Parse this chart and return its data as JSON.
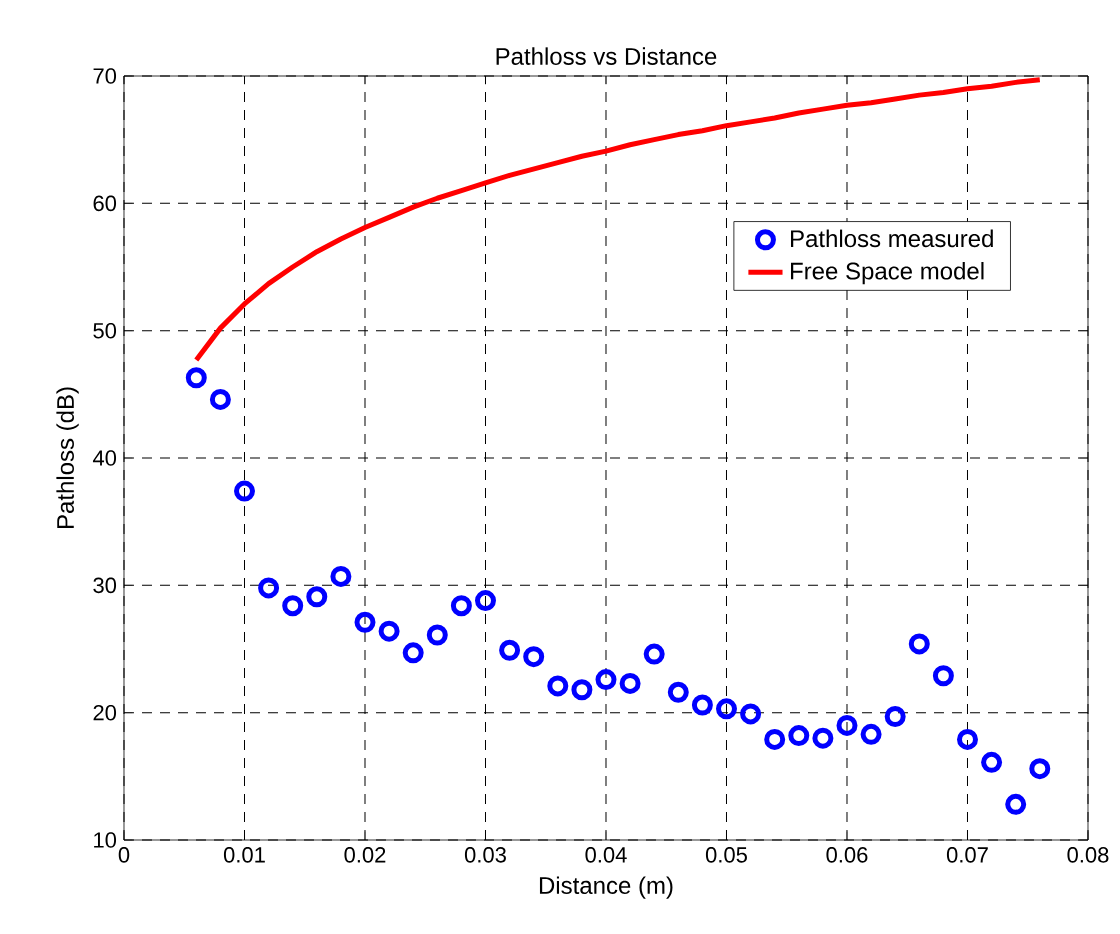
{
  "chart_data": {
    "type": "scatter",
    "title": "Pathloss vs Distance",
    "xlabel": "Distance (m)",
    "ylabel": "Pathloss (dB)",
    "xlim": [
      0,
      0.08
    ],
    "ylim": [
      10,
      70
    ],
    "xticks": [
      0,
      0.01,
      0.02,
      0.03,
      0.04,
      0.05,
      0.06,
      0.07,
      0.08
    ],
    "yticks": [
      10,
      20,
      30,
      40,
      50,
      60,
      70
    ],
    "grid": true,
    "legend": "top right",
    "series": [
      {
        "name": "Pathloss measured",
        "color": "#0000ff",
        "marker": "circle",
        "x": [
          0.006,
          0.008,
          0.01,
          0.012,
          0.014,
          0.016,
          0.018,
          0.02,
          0.022,
          0.024,
          0.026,
          0.028,
          0.03,
          0.032,
          0.034,
          0.036,
          0.038,
          0.04,
          0.042,
          0.044,
          0.046,
          0.048,
          0.05,
          0.052,
          0.054,
          0.056,
          0.058,
          0.06,
          0.062,
          0.064,
          0.066,
          0.068,
          0.07,
          0.072,
          0.074,
          0.076
        ],
        "values": [
          46.3,
          44.6,
          37.4,
          29.8,
          28.4,
          29.1,
          30.7,
          27.1,
          26.4,
          24.7,
          26.1,
          28.4,
          28.8,
          24.9,
          24.4,
          22.1,
          21.8,
          22.6,
          22.3,
          24.6,
          21.6,
          20.6,
          20.3,
          19.9,
          17.9,
          18.2,
          18.0,
          19.0,
          18.3,
          19.7,
          25.4,
          22.9,
          17.9,
          16.1,
          12.8,
          15.6
        ]
      },
      {
        "name": "Free Space model",
        "type": "line",
        "color": "#ff0000",
        "marker": "none",
        "line_style": "solid",
        "x": [
          0.006,
          0.008,
          0.01,
          0.012,
          0.014,
          0.016,
          0.018,
          0.02,
          0.022,
          0.024,
          0.026,
          0.028,
          0.03,
          0.032,
          0.034,
          0.036,
          0.038,
          0.04,
          0.042,
          0.044,
          0.046,
          0.048,
          0.05,
          0.052,
          0.054,
          0.056,
          0.058,
          0.06,
          0.062,
          0.064,
          0.066,
          0.068,
          0.07,
          0.072,
          0.074,
          0.076
        ],
        "values": [
          47.7,
          50.2,
          52.1,
          53.7,
          55.0,
          56.2,
          57.2,
          58.1,
          58.9,
          59.7,
          60.4,
          61.0,
          61.6,
          62.2,
          62.7,
          63.2,
          63.7,
          64.1,
          64.6,
          65.0,
          65.4,
          65.7,
          66.1,
          66.4,
          66.7,
          67.1,
          67.4,
          67.7,
          67.9,
          68.2,
          68.5,
          68.7,
          69.0,
          69.2,
          69.5,
          69.7
        ]
      }
    ]
  }
}
